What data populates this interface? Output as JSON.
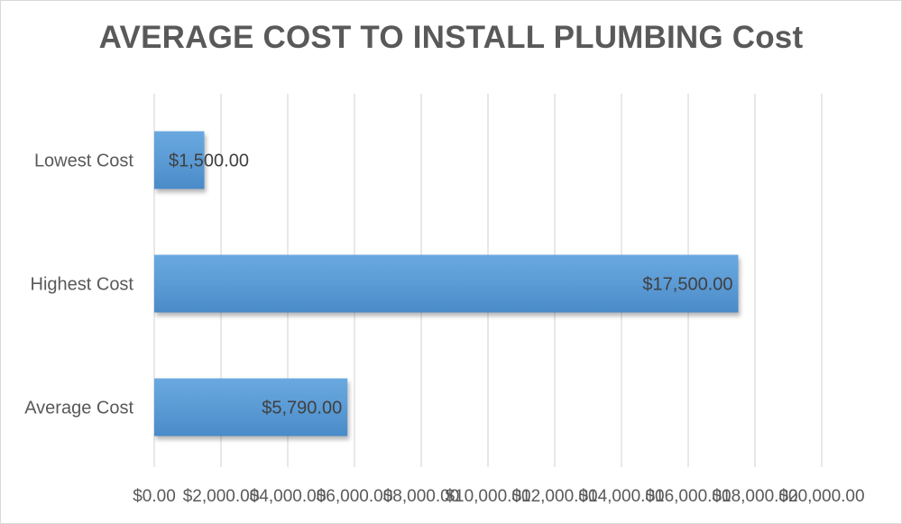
{
  "chart_data": {
    "type": "bar",
    "orientation": "horizontal",
    "title": "AVERAGE COST TO INSTALL PLUMBING Cost",
    "xlabel": "",
    "ylabel": "",
    "categories": [
      "Lowest Cost",
      "Highest Cost",
      "Average Cost"
    ],
    "series": [
      {
        "values": [
          1500,
          17500,
          5790
        ],
        "data_labels": [
          "$1,500.00",
          "$17,500.00",
          "$5,790.00"
        ]
      }
    ],
    "xlim": [
      0,
      20000
    ],
    "x_ticks": [
      0,
      2000,
      4000,
      6000,
      8000,
      10000,
      12000,
      14000,
      16000,
      18000,
      20000
    ],
    "x_tick_labels": [
      "$0.00",
      "$2,000.00",
      "$4,000.00",
      "$6,000.00",
      "$8,000.00",
      "$10,000.00",
      "$12,000.00",
      "$14,000.00",
      "$16,000.00",
      "$18,000.00",
      "$20,000.00"
    ],
    "grid": true,
    "legend": "none",
    "bar_color": "#5b9bd5"
  }
}
